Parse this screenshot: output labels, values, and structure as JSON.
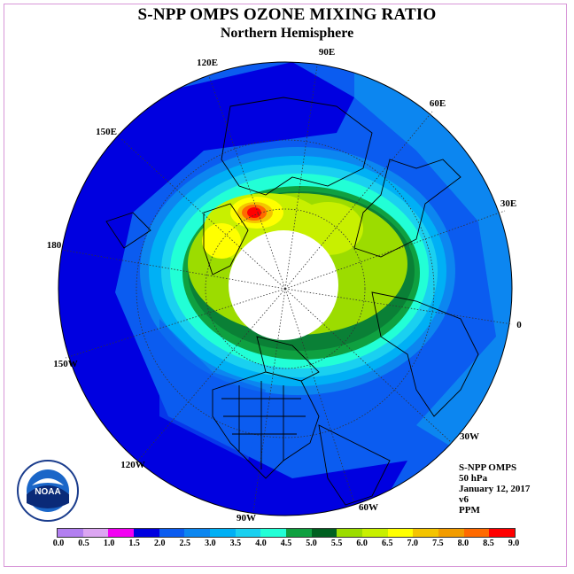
{
  "title": "S-NPP OMPS OZONE MIXING RATIO",
  "subtitle": "Northern Hemisphere",
  "longitude_labels": {
    "e90": "90E",
    "e60": "60E",
    "e30": "30E",
    "zero": "0",
    "w30": "30W",
    "w60": "60W",
    "w90": "90W",
    "w120": "120W",
    "w150": "150W",
    "e180": "180",
    "e150": "150E",
    "e120": "120E"
  },
  "info": {
    "instrument": "S-NPP OMPS",
    "level": "50 hPa",
    "date": "January 12, 2017",
    "version": "v6",
    "units": "PPM"
  },
  "colorbar": {
    "colors": [
      "#b27ff0",
      "#dca6f2",
      "#f200f2",
      "#a500d6",
      "#0000e0",
      "#0b5cf0",
      "#0c86f0",
      "#00b0f5",
      "#1ad0f0",
      "#22ffd6",
      "#0fa040",
      "#0a8036",
      "#006020",
      "#9cdc00",
      "#c8f000",
      "#ffff00",
      "#f4c400",
      "#f29c00",
      "#ff6a00",
      "#ff0000",
      "#9a6a4a"
    ],
    "tick_labels": [
      "0.0",
      "0.5",
      "1.0",
      "1.5",
      "2.0",
      "2.5",
      "3.0",
      "3.5",
      "4.0",
      "4.5",
      "5.0",
      "5.5",
      "6.0",
      "6.5",
      "7.0",
      "7.5",
      "8.0",
      "8.5",
      "9.0"
    ]
  },
  "logo_text": "NOAA"
}
